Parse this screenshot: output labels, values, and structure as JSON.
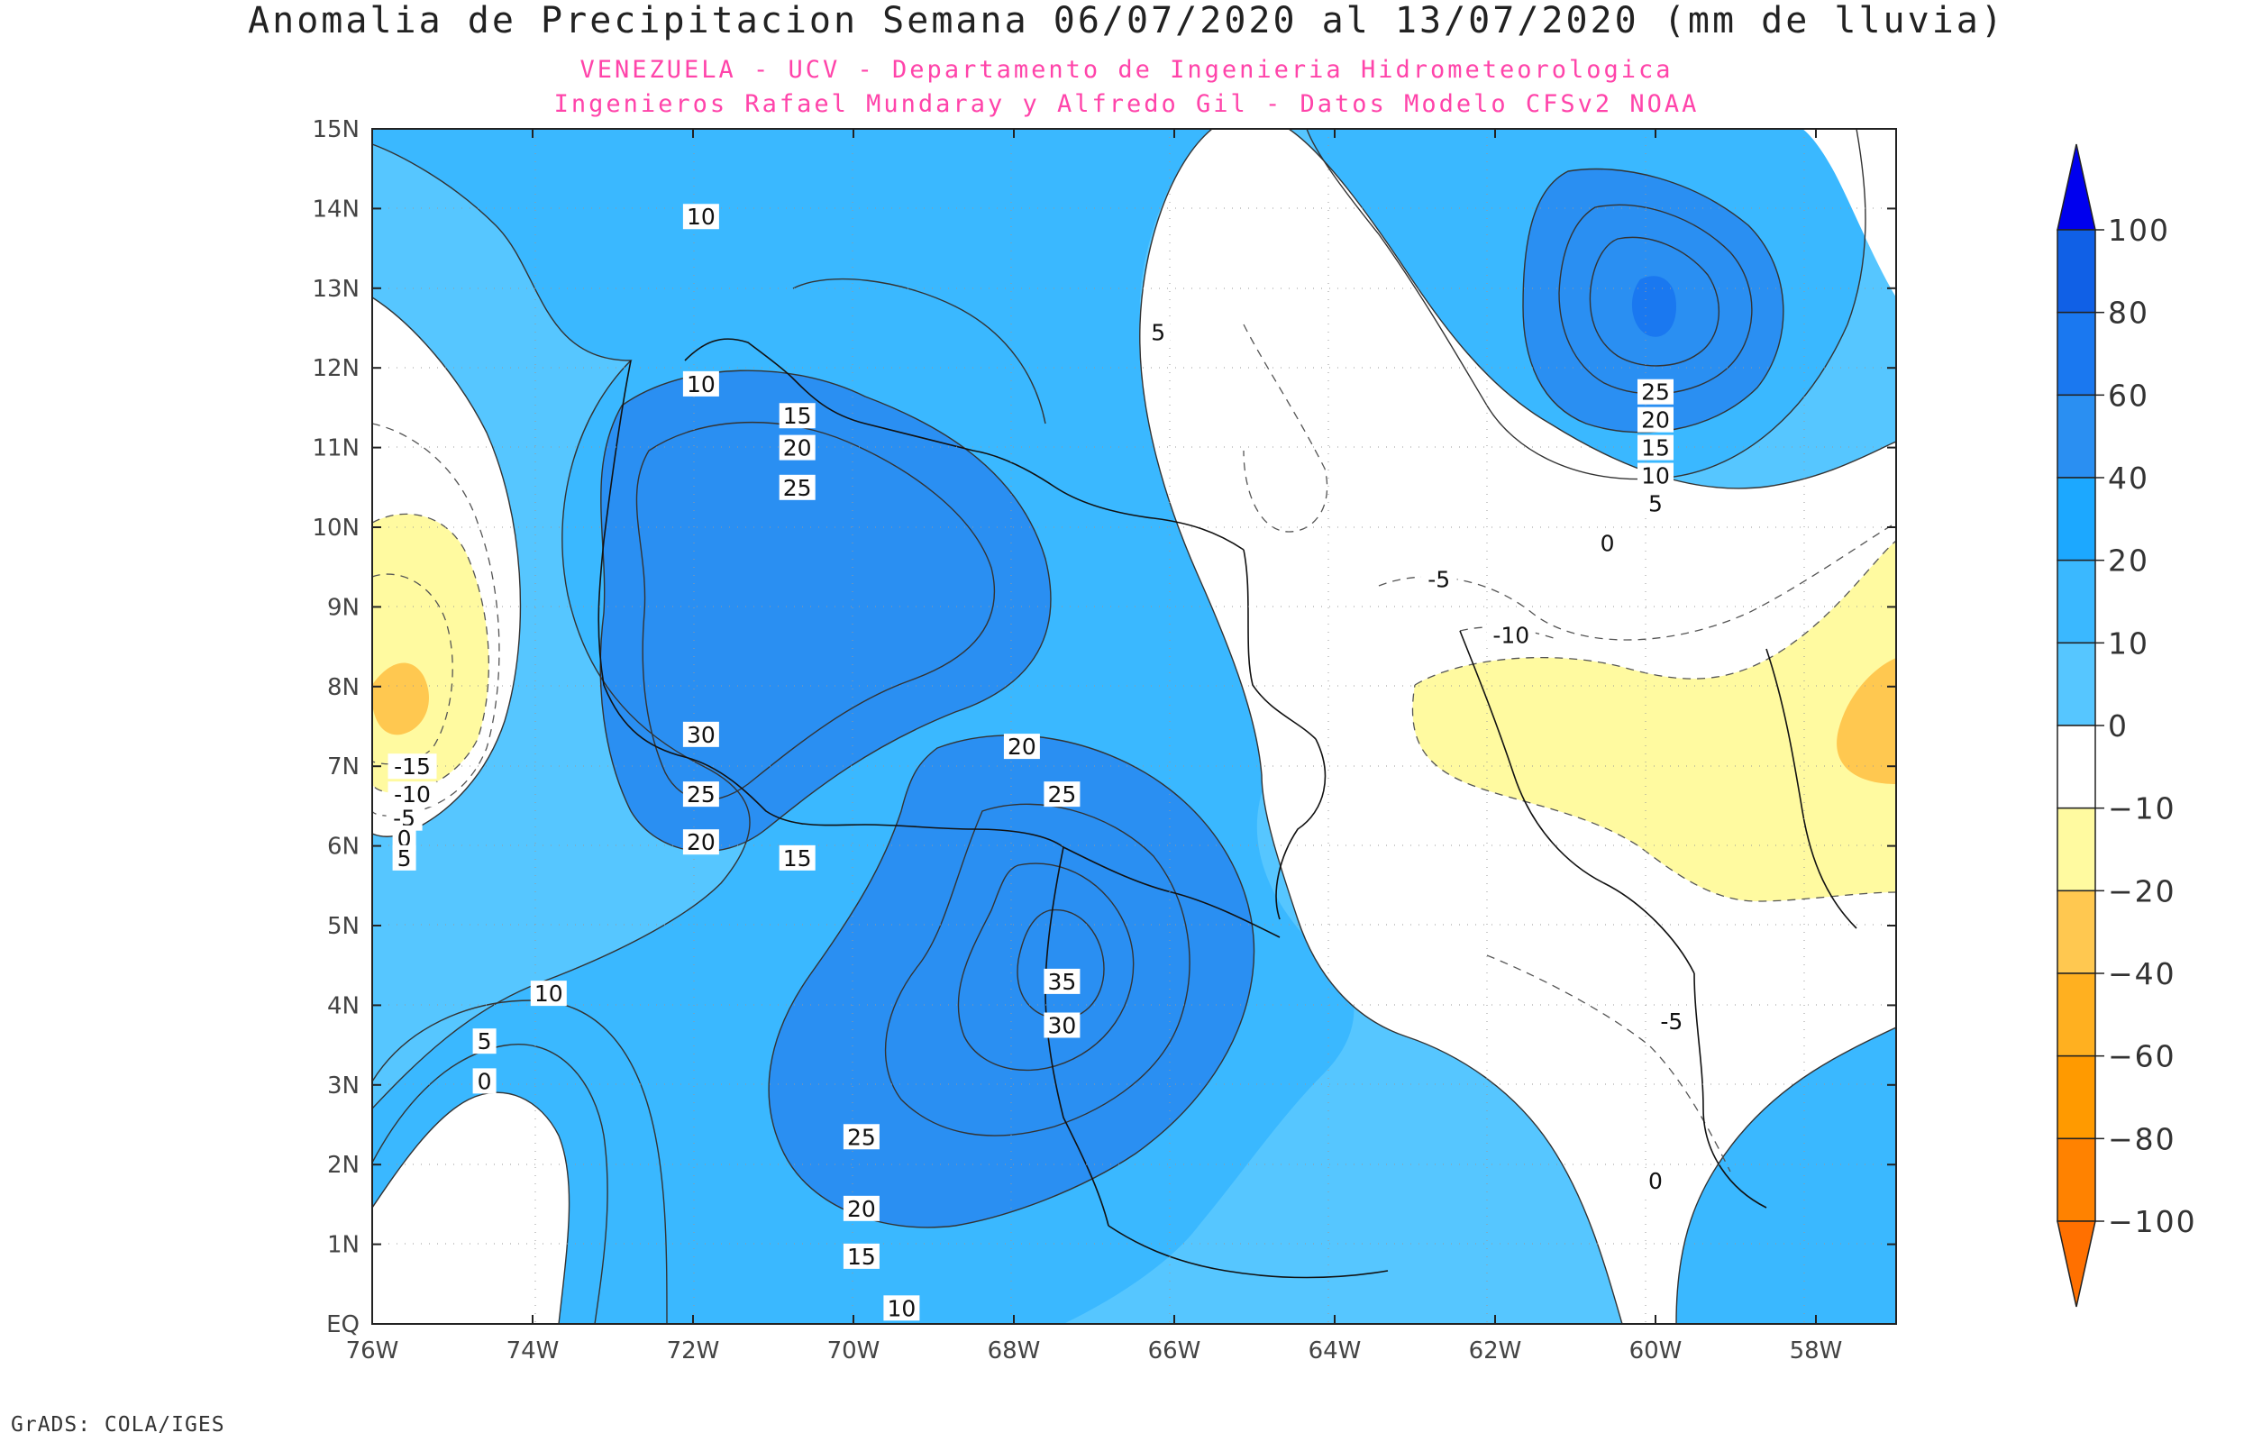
{
  "title": "Anomalia de Precipitacion Semana 06/07/2020 al 13/07/2020 (mm de lluvia)",
  "subtitle_1": "VENEZUELA - UCV - Departamento de Ingenieria Hidrometeorologica",
  "subtitle_2": "Ingenieros Rafael Mundaray y Alfredo Gil - Datos Modelo CFSv2 NOAA",
  "credit": "GrADS: COLA/IGES",
  "lat_labels": [
    "15N",
    "14N",
    "13N",
    "12N",
    "11N",
    "10N",
    "9N",
    "8N",
    "7N",
    "6N",
    "5N",
    "4N",
    "3N",
    "2N",
    "1N",
    "EQ"
  ],
  "lon_labels": [
    "76W",
    "74W",
    "72W",
    "70W",
    "68W",
    "66W",
    "64W",
    "62W",
    "60W",
    "58W"
  ],
  "colorbar": {
    "labels": [
      "100",
      "80",
      "60",
      "40",
      "20",
      "10",
      "0",
      "-10",
      "-20",
      "-40",
      "-60",
      "-80",
      "-100"
    ],
    "colors": [
      "#0000ee",
      "#1060e6",
      "#1a78f0",
      "#2a8ff2",
      "#1ca8ff",
      "#3ab8ff",
      "#56c6ff",
      "#ffffff",
      "#fffaa0",
      "#ffc850",
      "#ffb020",
      "#ff9a00",
      "#ff8200",
      "#ff7000"
    ]
  },
  "contour_labels": [
    {
      "t": "10",
      "lon": -71.9,
      "lat": 13.9
    },
    {
      "t": "5",
      "lon": -66.2,
      "lat": 12.45
    },
    {
      "t": "10",
      "lon": -71.9,
      "lat": 11.8
    },
    {
      "t": "15",
      "lon": -70.7,
      "lat": 11.4
    },
    {
      "t": "20",
      "lon": -70.7,
      "lat": 11.0
    },
    {
      "t": "25",
      "lon": -70.7,
      "lat": 10.5
    },
    {
      "t": "30",
      "lon": -71.9,
      "lat": 7.4
    },
    {
      "t": "25",
      "lon": -71.9,
      "lat": 6.65
    },
    {
      "t": "20",
      "lon": -71.9,
      "lat": 6.05
    },
    {
      "t": "15",
      "lon": -70.7,
      "lat": 5.85
    },
    {
      "t": "20",
      "lon": -67.9,
      "lat": 7.25
    },
    {
      "t": "25",
      "lon": -67.4,
      "lat": 6.65
    },
    {
      "t": "35",
      "lon": -67.4,
      "lat": 4.3
    },
    {
      "t": "30",
      "lon": -67.4,
      "lat": 3.75
    },
    {
      "t": "25",
      "lon": -69.9,
      "lat": 2.35
    },
    {
      "t": "20",
      "lon": -69.9,
      "lat": 1.45
    },
    {
      "t": "15",
      "lon": -69.9,
      "lat": 0.85
    },
    {
      "t": "10",
      "lon": -69.4,
      "lat": 0.2
    },
    {
      "t": "10",
      "lon": -73.8,
      "lat": 4.15
    },
    {
      "t": "5",
      "lon": -74.6,
      "lat": 3.55
    },
    {
      "t": "0",
      "lon": -74.6,
      "lat": 3.05
    },
    {
      "t": "25",
      "lon": -60.0,
      "lat": 11.7
    },
    {
      "t": "20",
      "lon": -60.0,
      "lat": 11.35
    },
    {
      "t": "15",
      "lon": -60.0,
      "lat": 11.0
    },
    {
      "t": "10",
      "lon": -60.0,
      "lat": 10.65
    },
    {
      "t": "5",
      "lon": -60.0,
      "lat": 10.3
    },
    {
      "t": "0",
      "lon": -60.6,
      "lat": 9.8
    },
    {
      "t": "-5",
      "lon": -62.7,
      "lat": 9.35
    },
    {
      "t": "-10",
      "lon": -61.8,
      "lat": 8.65
    },
    {
      "t": "-5",
      "lon": -59.8,
      "lat": 3.8
    },
    {
      "t": "0",
      "lon": -60.0,
      "lat": 1.8
    },
    {
      "t": "-15",
      "lon": -75.5,
      "lat": 7.0
    },
    {
      "t": "-10",
      "lon": -75.5,
      "lat": 6.65
    },
    {
      "t": "-5",
      "lon": -75.6,
      "lat": 6.35
    },
    {
      "t": "0",
      "lon": -75.6,
      "lat": 6.1
    },
    {
      "t": "5",
      "lon": -75.6,
      "lat": 5.85
    }
  ]
}
